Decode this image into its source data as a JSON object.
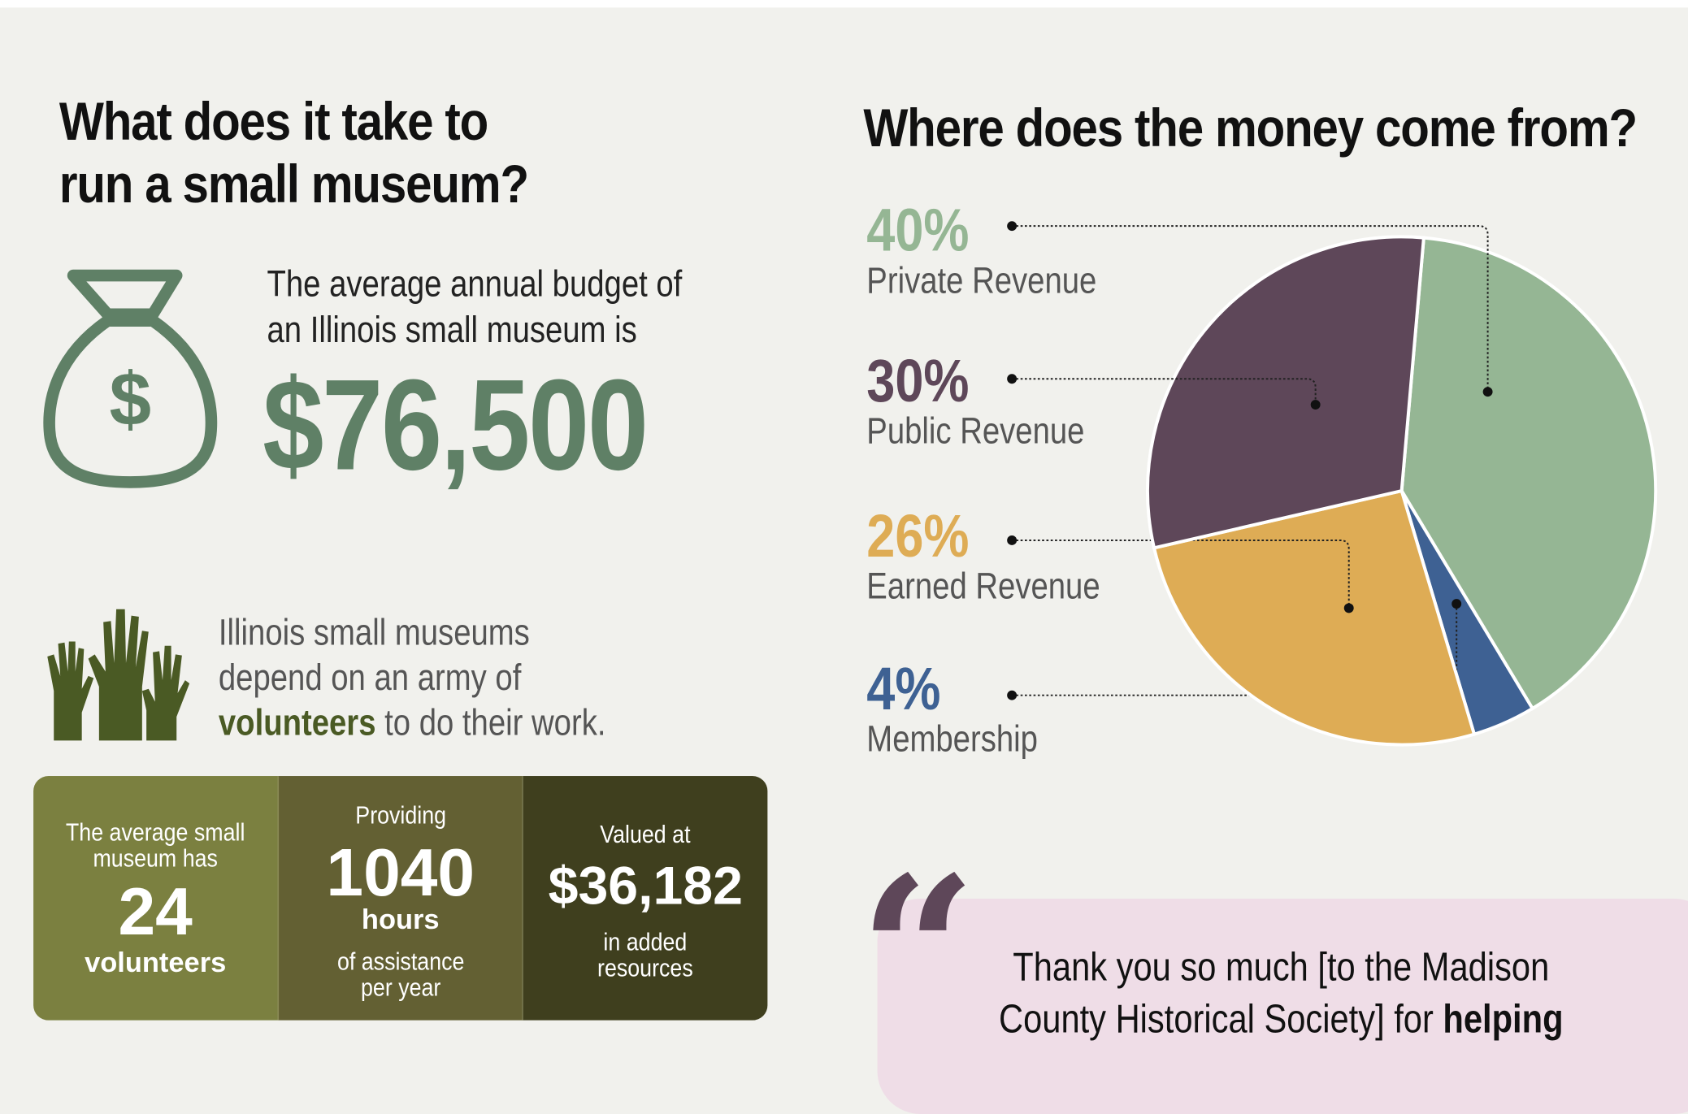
{
  "left": {
    "title_line1": "What does it take to",
    "title_line2": "run a small museum?",
    "budget_line1": "The average annual budget of",
    "budget_line2": "an Illinois small museum is",
    "budget_value": "$76,500",
    "money_icon": "money-bag-icon",
    "hands_icon": "raised-hands-icon",
    "volunteers_line1": "Illinois small museums",
    "volunteers_line2": "depend on an army of",
    "volunteers_bold": "volunteers",
    "volunteers_rest": " to do their work.",
    "stats": [
      {
        "top1": "The average small",
        "top2": "museum has",
        "value": "24",
        "unit": "volunteers",
        "color": "#7b8040"
      },
      {
        "top": "Providing",
        "value": "1040",
        "unit": "hours",
        "bottom1": "of assistance",
        "bottom2": "per year",
        "color": "#636033"
      },
      {
        "top": "Valued at",
        "value": "$36,182",
        "bottom1": "in added",
        "bottom2": "resources",
        "color": "#3f3f1e"
      }
    ]
  },
  "right": {
    "title": "Where does the money come from?",
    "quote_line1": "Thank you so much [to the Madison",
    "quote_line2": "County Historical Society] for ",
    "quote_bold": "helping"
  },
  "chart_data": {
    "type": "pie",
    "slices": [
      {
        "label": "Private Revenue",
        "pct_text": "40%",
        "value": 40,
        "color": "#95b694"
      },
      {
        "label": "Membership",
        "pct_text": "4%",
        "value": 4,
        "color": "#3e6193"
      },
      {
        "label": "Earned Revenue",
        "pct_text": "26%",
        "value": 26,
        "color": "#deac55"
      },
      {
        "label": "Public Revenue",
        "pct_text": "30%",
        "value": 30,
        "color": "#5e4759"
      }
    ]
  }
}
